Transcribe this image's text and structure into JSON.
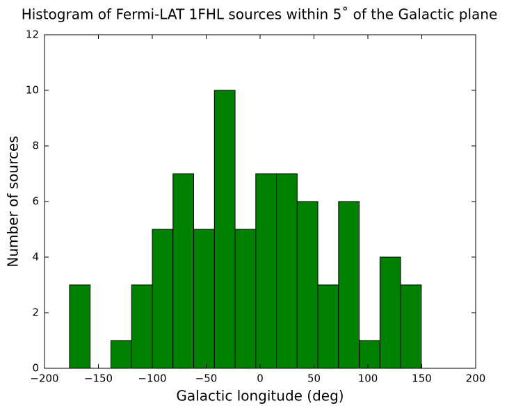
{
  "chart_data": {
    "type": "histogram",
    "title": "Histogram of Fermi-LAT 1FHL sources within 5˚ of the Galactic plane",
    "xlabel": "Galactic longitude (deg)",
    "ylabel": "Number of sources",
    "bins": [
      -176.8,
      -157.6,
      -138.4,
      -119.2,
      -100.0,
      -80.8,
      -61.6,
      -42.4,
      -23.2,
      -4.0,
      15.2,
      34.4,
      53.6,
      72.8,
      92.0,
      111.2,
      130.4,
      149.6
    ],
    "counts": [
      3,
      0,
      1,
      3,
      5,
      7,
      5,
      10,
      5,
      7,
      7,
      6,
      3,
      6,
      1,
      4,
      3
    ],
    "color": "#008000",
    "xlim": [
      -200,
      200
    ],
    "xticks": [
      {
        "value": -200,
        "label": "−200"
      },
      {
        "value": -150,
        "label": "−150"
      },
      {
        "value": -100,
        "label": "−100"
      },
      {
        "value": -50,
        "label": "−50"
      },
      0,
      50,
      100,
      150,
      200
    ],
    "ylim": [
      0,
      12
    ],
    "yticks": [
      0,
      2,
      4,
      6,
      8,
      10,
      12
    ],
    "grid": false
  }
}
